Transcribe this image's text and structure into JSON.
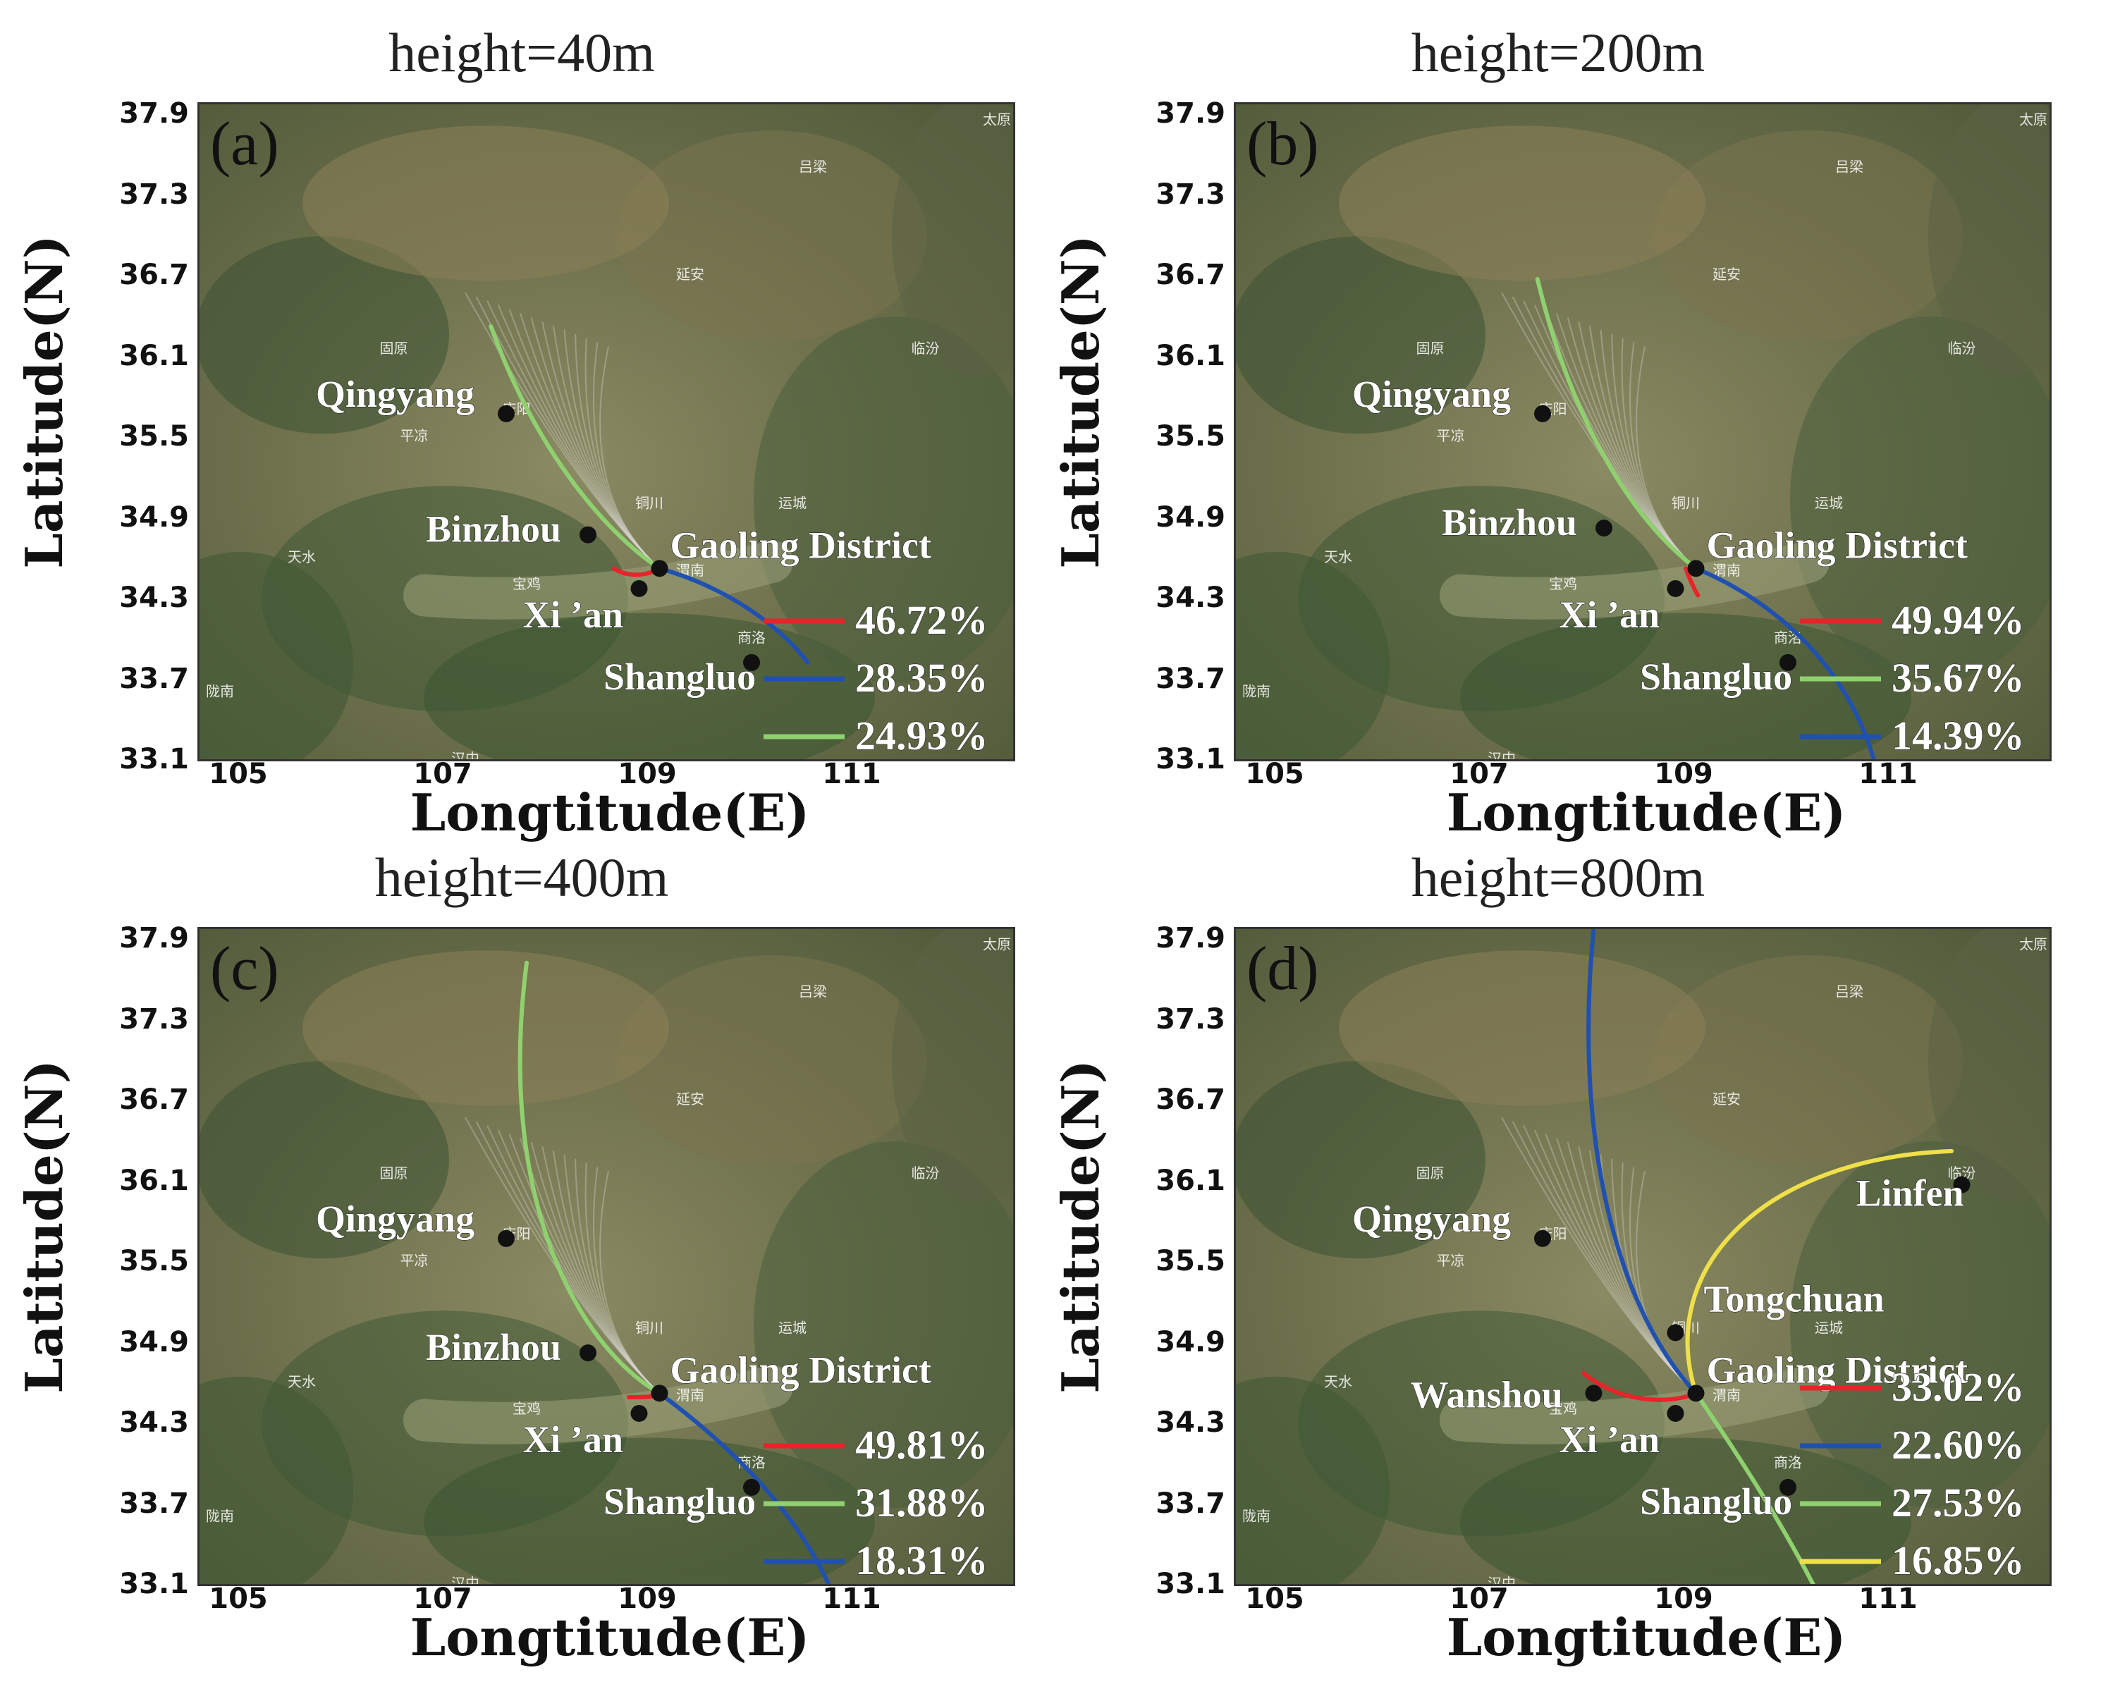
{
  "axes": {
    "xlabel": "Longtitude(E)",
    "ylabel": "Latitude(N)",
    "xticks": [
      "105",
      "107",
      "109",
      "111"
    ],
    "yticks": [
      "37.9",
      "37.3",
      "36.7",
      "36.1",
      "35.5",
      "34.9",
      "34.3",
      "33.7",
      "33.1"
    ],
    "xlim": [
      104.6,
      112.6
    ],
    "ylim": [
      33.1,
      38.0
    ]
  },
  "map_labels": [
    "太原",
    "吕梁",
    "延安",
    "临汾",
    "固原",
    "平凉",
    "庆阳",
    "铜川",
    "运城",
    "天水",
    "宝鸡",
    "渭南",
    "商洛",
    "汉中",
    "陇南"
  ],
  "colors": {
    "red": "#e8232a",
    "blue": "#2050b0",
    "green": "#8fd16f",
    "yellow": "#efe04a"
  },
  "chart_data": [
    {
      "type": "map",
      "title": "height=40m",
      "letter": "(a)",
      "cities": [
        {
          "name": "Qingyang",
          "lon": 107.6,
          "lat": 35.7
        },
        {
          "name": "Binzhou",
          "lon": 108.4,
          "lat": 34.8
        },
        {
          "name": "Gaoling District",
          "lon": 109.1,
          "lat": 34.55
        },
        {
          "name": "Xi ’an",
          "lon": 108.9,
          "lat": 34.4
        },
        {
          "name": "Shangluo",
          "lon": 110.0,
          "lat": 33.85
        }
      ],
      "series": [
        {
          "color": "red",
          "percent": "46.72%"
        },
        {
          "color": "blue",
          "percent": "28.35%"
        },
        {
          "color": "green",
          "percent": "24.93%"
        }
      ]
    },
    {
      "type": "map",
      "title": "height=200m",
      "letter": "(b)",
      "cities": [
        {
          "name": "Qingyang",
          "lon": 107.6,
          "lat": 35.7
        },
        {
          "name": "Binzhou",
          "lon": 108.2,
          "lat": 34.85
        },
        {
          "name": "Gaoling District",
          "lon": 109.1,
          "lat": 34.55
        },
        {
          "name": "Xi ’an",
          "lon": 108.9,
          "lat": 34.4
        },
        {
          "name": "Shangluo",
          "lon": 110.0,
          "lat": 33.85
        }
      ],
      "series": [
        {
          "color": "red",
          "percent": "49.94%"
        },
        {
          "color": "green",
          "percent": "35.67%"
        },
        {
          "color": "blue",
          "percent": "14.39%"
        }
      ]
    },
    {
      "type": "map",
      "title": "height=400m",
      "letter": "(c)",
      "cities": [
        {
          "name": "Qingyang",
          "lon": 107.6,
          "lat": 35.7
        },
        {
          "name": "Binzhou",
          "lon": 108.4,
          "lat": 34.85
        },
        {
          "name": "Gaoling District",
          "lon": 109.1,
          "lat": 34.55
        },
        {
          "name": "Xi ’an",
          "lon": 108.9,
          "lat": 34.4
        },
        {
          "name": "Shangluo",
          "lon": 110.0,
          "lat": 33.85
        }
      ],
      "series": [
        {
          "color": "red",
          "percent": "49.81%"
        },
        {
          "color": "green",
          "percent": "31.88%"
        },
        {
          "color": "blue",
          "percent": "18.31%"
        }
      ]
    },
    {
      "type": "map",
      "title": "height=800m",
      "letter": "(d)",
      "cities": [
        {
          "name": "Qingyang",
          "lon": 107.6,
          "lat": 35.7
        },
        {
          "name": "Linfen",
          "lon": 111.7,
          "lat": 36.1
        },
        {
          "name": "Tongchuan",
          "lon": 108.9,
          "lat": 35.0
        },
        {
          "name": "Gaoling District",
          "lon": 109.1,
          "lat": 34.55
        },
        {
          "name": "Wanshou",
          "lon": 108.1,
          "lat": 34.55
        },
        {
          "name": "Xi ’an",
          "lon": 108.9,
          "lat": 34.4
        },
        {
          "name": "Shangluo",
          "lon": 110.0,
          "lat": 33.85
        }
      ],
      "series": [
        {
          "color": "red",
          "percent": "33.02%"
        },
        {
          "color": "blue",
          "percent": "22.60%"
        },
        {
          "color": "green",
          "percent": "27.53%"
        },
        {
          "color": "yellow",
          "percent": "16.85%"
        }
      ]
    }
  ]
}
